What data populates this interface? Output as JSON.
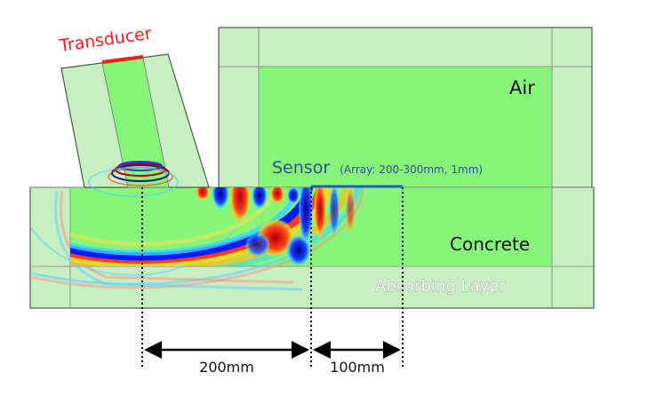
{
  "labels": {
    "transducer": "Transducer",
    "air": "Air",
    "sensor": "Sensor",
    "sensor_detail": "(Array: 200-300mm, 1mm)",
    "concrete": "Concrete",
    "absorbing_layer": "Absorbing Layer"
  },
  "dimensions": {
    "first": "200mm",
    "second": "100mm"
  },
  "colors": {
    "domain": "#86f57a",
    "absorbing": "#c8efc2",
    "border": "#4a5a4a",
    "transducer": "#ff1a1a",
    "sensor": "#1f5fbf",
    "sensor_text": "#2d4f9a"
  }
}
